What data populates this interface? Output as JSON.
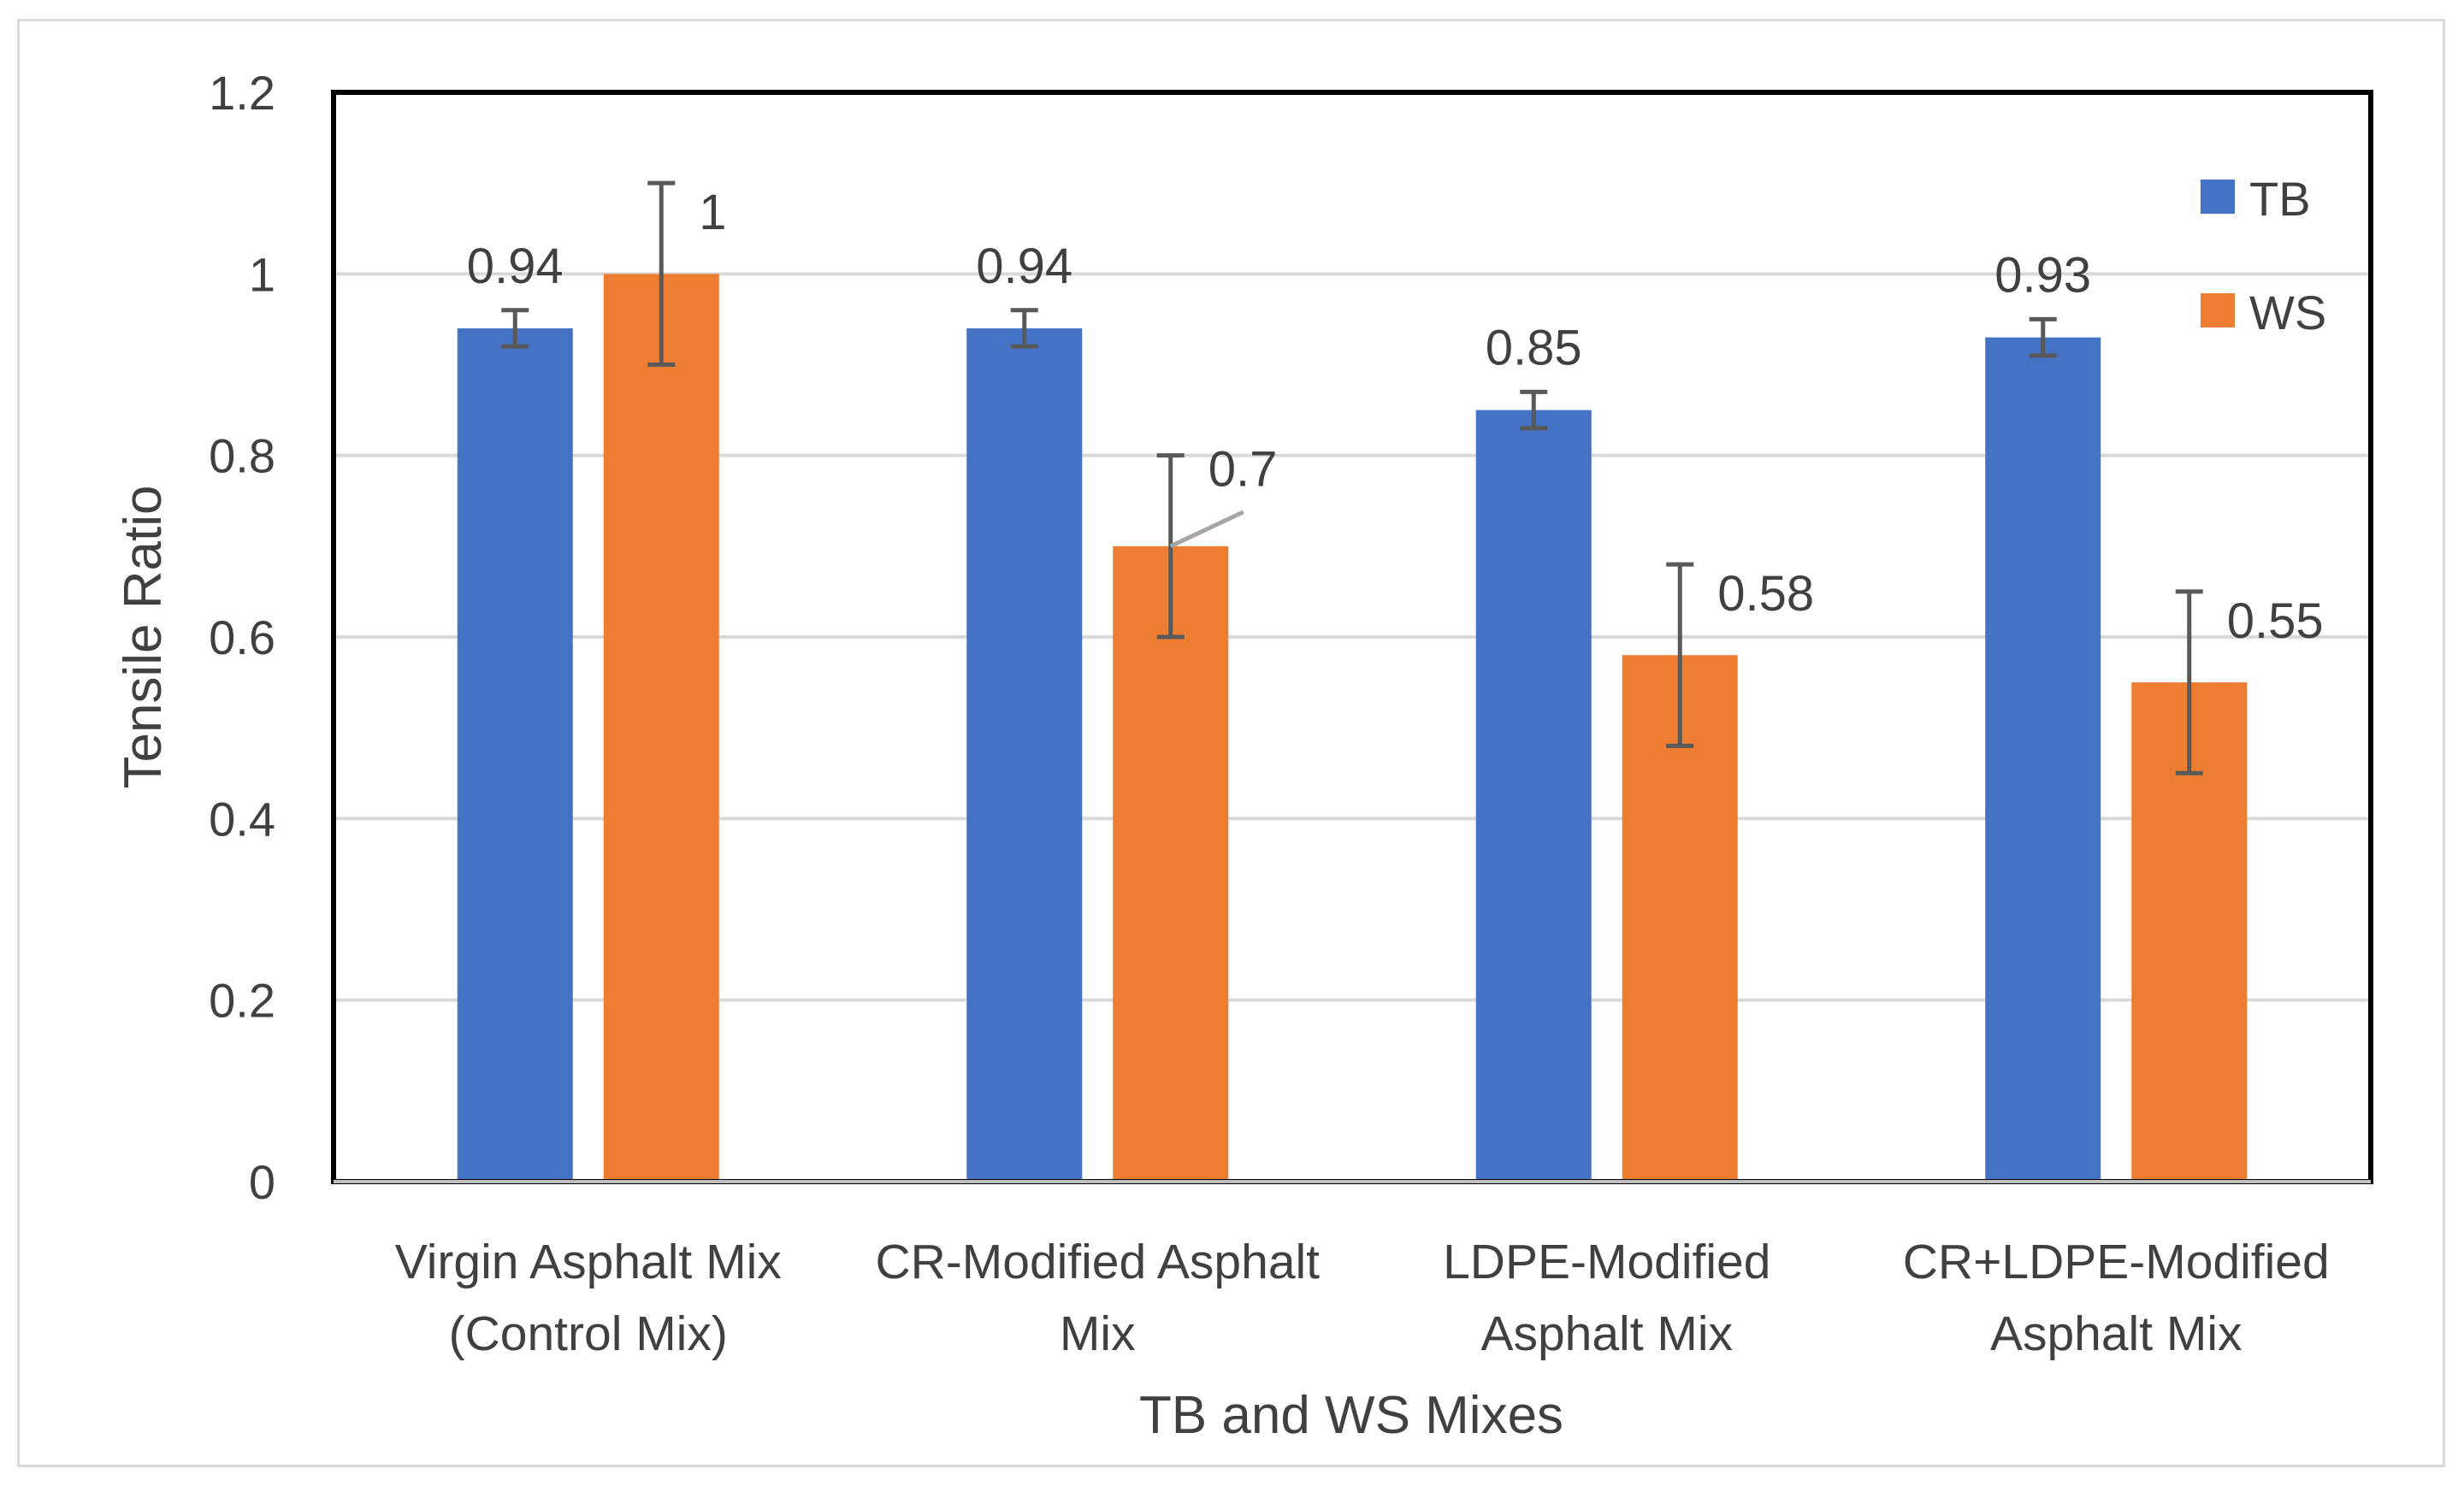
{
  "chart_data": {
    "type": "bar",
    "title": "",
    "xlabel": "TB and WS Mixes",
    "ylabel": "Tensile Ratio",
    "ylim": [
      0,
      1.2
    ],
    "yticks": [
      "0",
      "0.2",
      "0.4",
      "0.6",
      "0.8",
      "1",
      "1.2"
    ],
    "ytick_values": [
      0,
      0.2,
      0.4,
      0.6,
      0.8,
      1.0,
      1.2
    ],
    "grid": true,
    "legend_position": "top-right",
    "categories": [
      [
        "Virgin Asphalt Mix",
        "(Control Mix)"
      ],
      [
        "CR-Modified Asphalt",
        "Mix"
      ],
      [
        "LDPE-Modified",
        "Asphalt Mix"
      ],
      [
        "CR+LDPE-Modified",
        "Asphalt Mix"
      ]
    ],
    "series": [
      {
        "name": "TB",
        "color": "#4472c4",
        "values": [
          0.94,
          0.94,
          0.85,
          0.93
        ],
        "labels": [
          "0.94",
          "0.94",
          "0.85",
          "0.93"
        ],
        "errors": [
          0.02,
          0.02,
          0.02,
          0.02
        ]
      },
      {
        "name": "WS",
        "color": "#ed7d31",
        "values": [
          1.0,
          0.7,
          0.58,
          0.55
        ],
        "labels": [
          "1",
          "0.7",
          "0.58",
          "0.55"
        ],
        "errors": [
          0.1,
          0.1,
          0.1,
          0.1
        ]
      }
    ]
  }
}
